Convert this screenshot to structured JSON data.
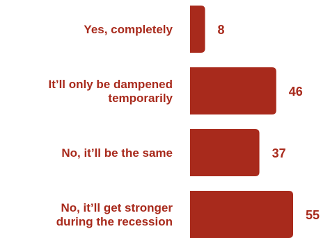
{
  "chart_data": {
    "type": "bar",
    "orientation": "horizontal",
    "categories": [
      [
        "Yes, completely"
      ],
      [
        "It’ll only be dampened",
        "temporarily"
      ],
      [
        "No, it’ll be the same"
      ],
      [
        "No, it’ll get stronger",
        "during the recession"
      ]
    ],
    "values": [
      8,
      46,
      37,
      55
    ],
    "value_labels": [
      "8",
      "46",
      "37",
      "55"
    ],
    "title": "",
    "xlabel": "",
    "ylabel": "",
    "xlim": [
      0,
      55
    ],
    "grid": false,
    "legend": "none"
  },
  "colors": {
    "bar": "#a82a1c",
    "text": "#a82a1c",
    "background": "#ffffff"
  }
}
